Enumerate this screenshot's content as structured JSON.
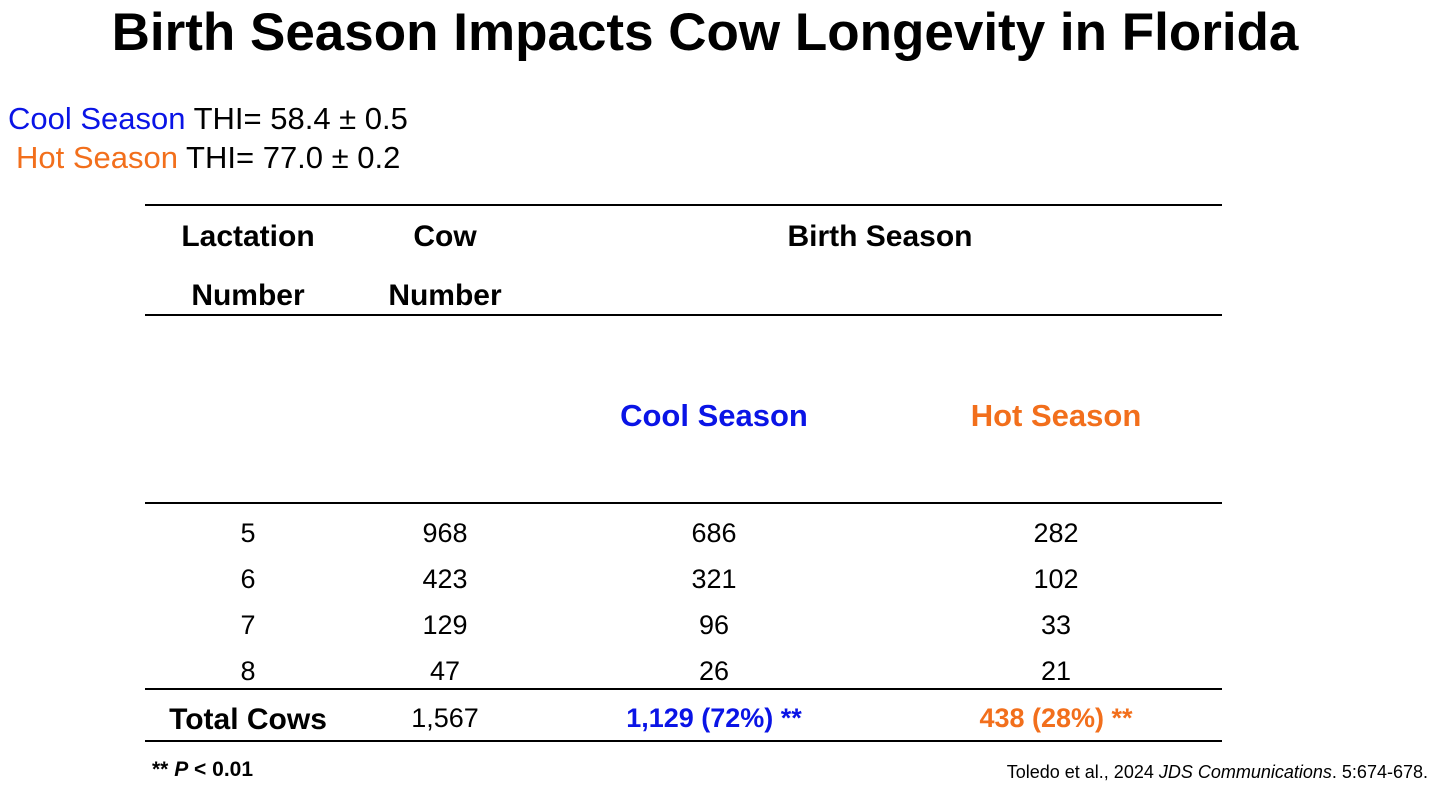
{
  "title": "Birth Season Impacts Cow Longevity in Florida",
  "thi": {
    "cool": {
      "season": "Cool Season",
      "value": " THI= 58.4 ± 0.5"
    },
    "hot": {
      "season": "Hot Season",
      "value": " THI= 77.0 ± 0.2"
    }
  },
  "table": {
    "headers": {
      "lactation_line1": "Lactation",
      "lactation_line2": "Number",
      "cow_line1": "Cow",
      "cow_line2": "Number",
      "birth_season": "Birth Season",
      "cool_season": "Cool Season",
      "hot_season": "Hot Season"
    },
    "rows": [
      {
        "lactation": "5",
        "cow": "968",
        "cool": "686",
        "hot": "282"
      },
      {
        "lactation": "6",
        "cow": "423",
        "cool": "321",
        "hot": "102"
      },
      {
        "lactation": "7",
        "cow": "129",
        "cool": "96",
        "hot": "33"
      },
      {
        "lactation": "8",
        "cow": "47",
        "cool": "26",
        "hot": "21"
      }
    ],
    "total": {
      "label": "Total Cows",
      "cow": "1,567",
      "cool": "1,129 (72%) **",
      "hot": "438 (28%) **"
    }
  },
  "footnote": {
    "stars": "** ",
    "p": "P",
    "rest": " < 0.01"
  },
  "citation": {
    "authors": "Toledo et al., 2024  ",
    "journal": "JDS Communications",
    "pages": ". 5:674-678."
  },
  "colors": {
    "cool": "#0a14e6",
    "hot": "#f26f1c"
  }
}
